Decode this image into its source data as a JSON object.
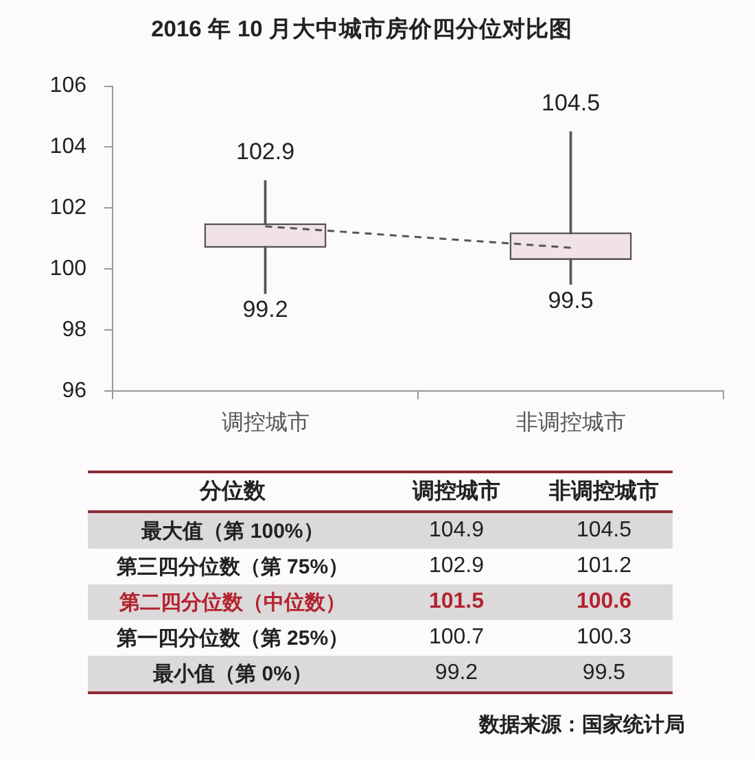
{
  "chart_data": [
    {
      "type": "candlestick",
      "title": "2016 年 10 月大中城市房价四分位对比图",
      "categories": [
        "调控城市",
        "非调控城市"
      ],
      "ohlc": [
        [
          100.7,
          102.9,
          99.2,
          101.5
        ],
        [
          100.3,
          104.5,
          99.5,
          101.2
        ]
      ],
      "color": "#555555",
      "series": [
        {
          "type": "line",
          "color": "#555555",
          "values": [
            101.4,
            100.7
          ],
          "line_style": "dashed",
          "marker": "none"
        }
      ],
      "ylim": [
        96,
        106
      ],
      "yticks": [
        96,
        98,
        100,
        102,
        104,
        106
      ],
      "annotations": [
        {
          "text": "102.9",
          "x": "调控城市",
          "y": 102.9
        },
        {
          "text": "99.2",
          "x": "调控城市",
          "y": 99.2
        },
        {
          "text": "104.5",
          "x": "非调控城市",
          "y": 104.5
        },
        {
          "text": "99.5",
          "x": "非调控城市",
          "y": 99.5
        }
      ]
    },
    {
      "type": "other",
      "xlabel": "分位数",
      "categories": [
        "最大值（第 100%）",
        "第三四分位数（第 75%）",
        "第二四分位数（中位数）",
        "第一四分位数（第 25%）",
        "最小值（第 0%）"
      ],
      "series": [
        {
          "name": "调控城市",
          "values": [
            104.9,
            102.9,
            101.5,
            100.7,
            99.2
          ],
          "colors": [
            "#dcd9da",
            "#fdfafb",
            "#dcd9da",
            "#fdfafb",
            "#dcd9da"
          ]
        },
        {
          "name": "非调控城市",
          "values": [
            104.5,
            101.2,
            100.6,
            100.3,
            99.5
          ],
          "colors": [
            "#dcd9da",
            "#fdfafb",
            "#dcd9da",
            "#fdfafb",
            "#dcd9da"
          ]
        }
      ],
      "data_labels": true,
      "annotations": [
        "数据来源：国家统计局"
      ]
    }
  ]
}
